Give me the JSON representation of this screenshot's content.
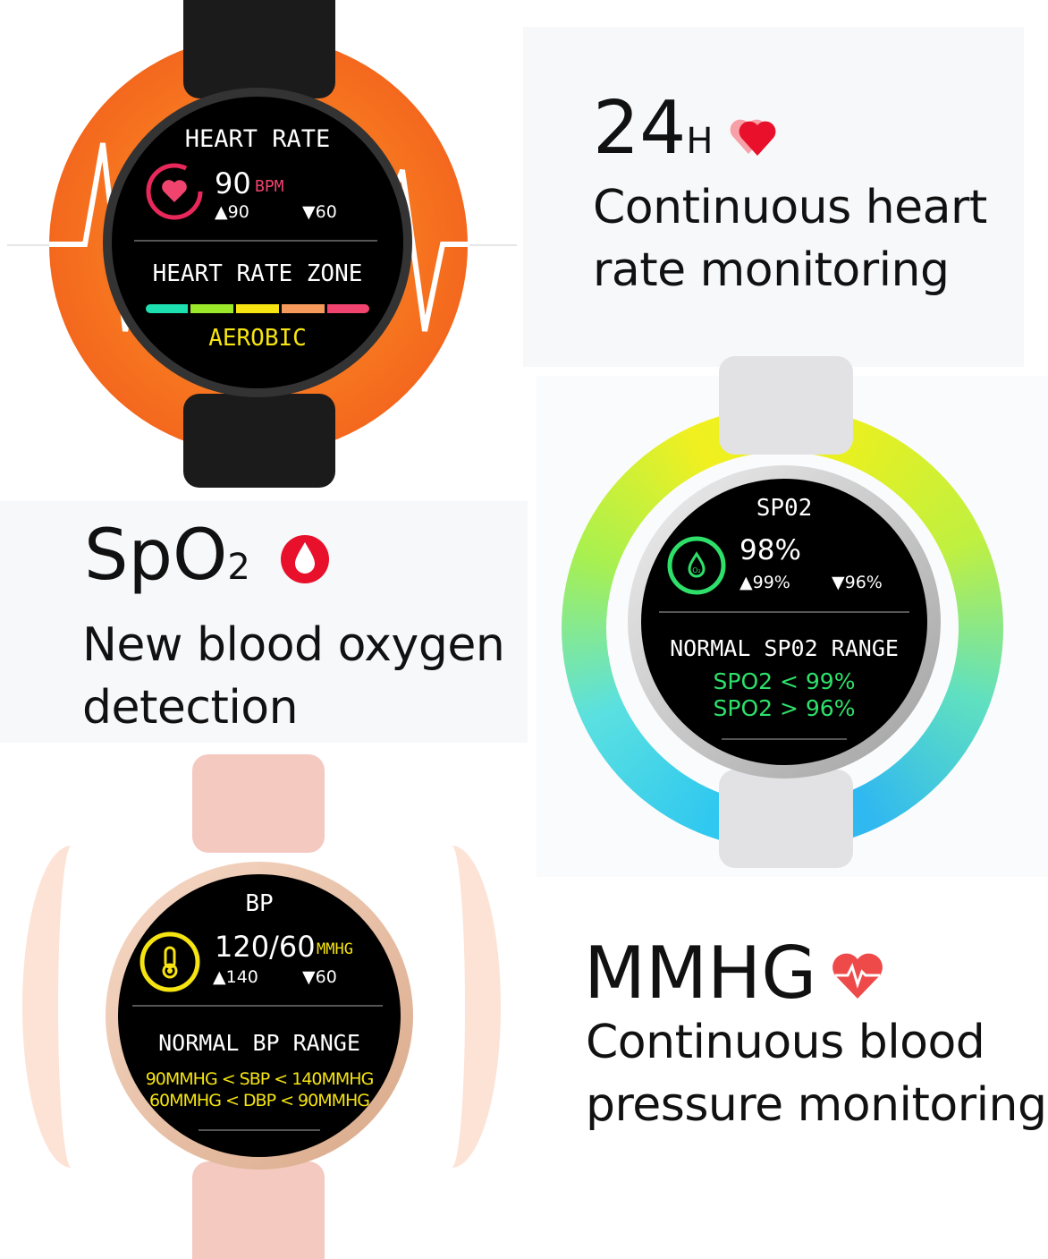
{
  "heart_rate": {
    "headline_number": "24",
    "headline_unit": "H",
    "description_line1": "Continuous heart",
    "description_line2": "rate monitoring",
    "watch": {
      "title": "HEART RATE",
      "value": "90",
      "unit": "BPM",
      "max": "▲90",
      "min": "▼60",
      "zone_title": "HEART RATE ZONE",
      "zone": "AEROBIC",
      "zone_colors": [
        "#1de0b0",
        "#9be82a",
        "#f5e312",
        "#f59a5a",
        "#f0436e"
      ]
    },
    "accent": "#f45a1c"
  },
  "spo2": {
    "headline": "SpO",
    "headline_sub": "2",
    "description_line1": "New blood oxygen",
    "description_line2": "detection",
    "watch": {
      "title": "SP02",
      "value": "98%",
      "max": "▲99%",
      "min": "▼96%",
      "icon_label": "O₂",
      "range_title": "NORMAL  SP02  RANGE",
      "range_line1": "SPO2 < 99%",
      "range_line2": "SPO2 > 96%"
    },
    "accent": "#2ee06a"
  },
  "blood_pressure": {
    "headline": "MMHG",
    "description_line1": "Continuous blood",
    "description_line2": "pressure monitoring",
    "watch": {
      "title": "BP",
      "value": "120/60",
      "unit": "MMHG",
      "max": "▲140",
      "min": "▼60",
      "range_title": "NORMAL  BP  RANGE",
      "range_line1": "90MMHG < SBP < 140MMHG",
      "range_line2": "60MMHG < DBP < 90MMHG"
    },
    "accent": "#f5e312"
  },
  "icons": {
    "heart": "heart-icon",
    "drop": "blood-drop-icon",
    "pulse_heart": "heart-pulse-icon",
    "thermometer": "thermometer-icon"
  }
}
